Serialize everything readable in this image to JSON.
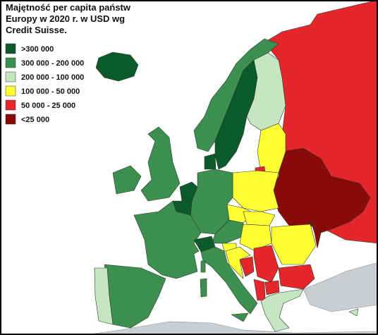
{
  "title_lines": [
    "Majętność per capita państw",
    "Europy w 2020 r. w USD wg",
    "Credit Suisse."
  ],
  "legend": [
    {
      "label": ">300 000",
      "color": "#0b5a2a"
    },
    {
      "label": "300 000 - 200 000",
      "color": "#3c8f4e"
    },
    {
      "label": "200 000 - 100 000",
      "color": "#c6e6c1"
    },
    {
      "label": "100 000 - 50 000",
      "color": "#ffff33"
    },
    {
      "label": "50 000 - 25 000",
      "color": "#e5262a"
    },
    {
      "label": "<25 000",
      "color": "#8a0a0a"
    }
  ]
}
